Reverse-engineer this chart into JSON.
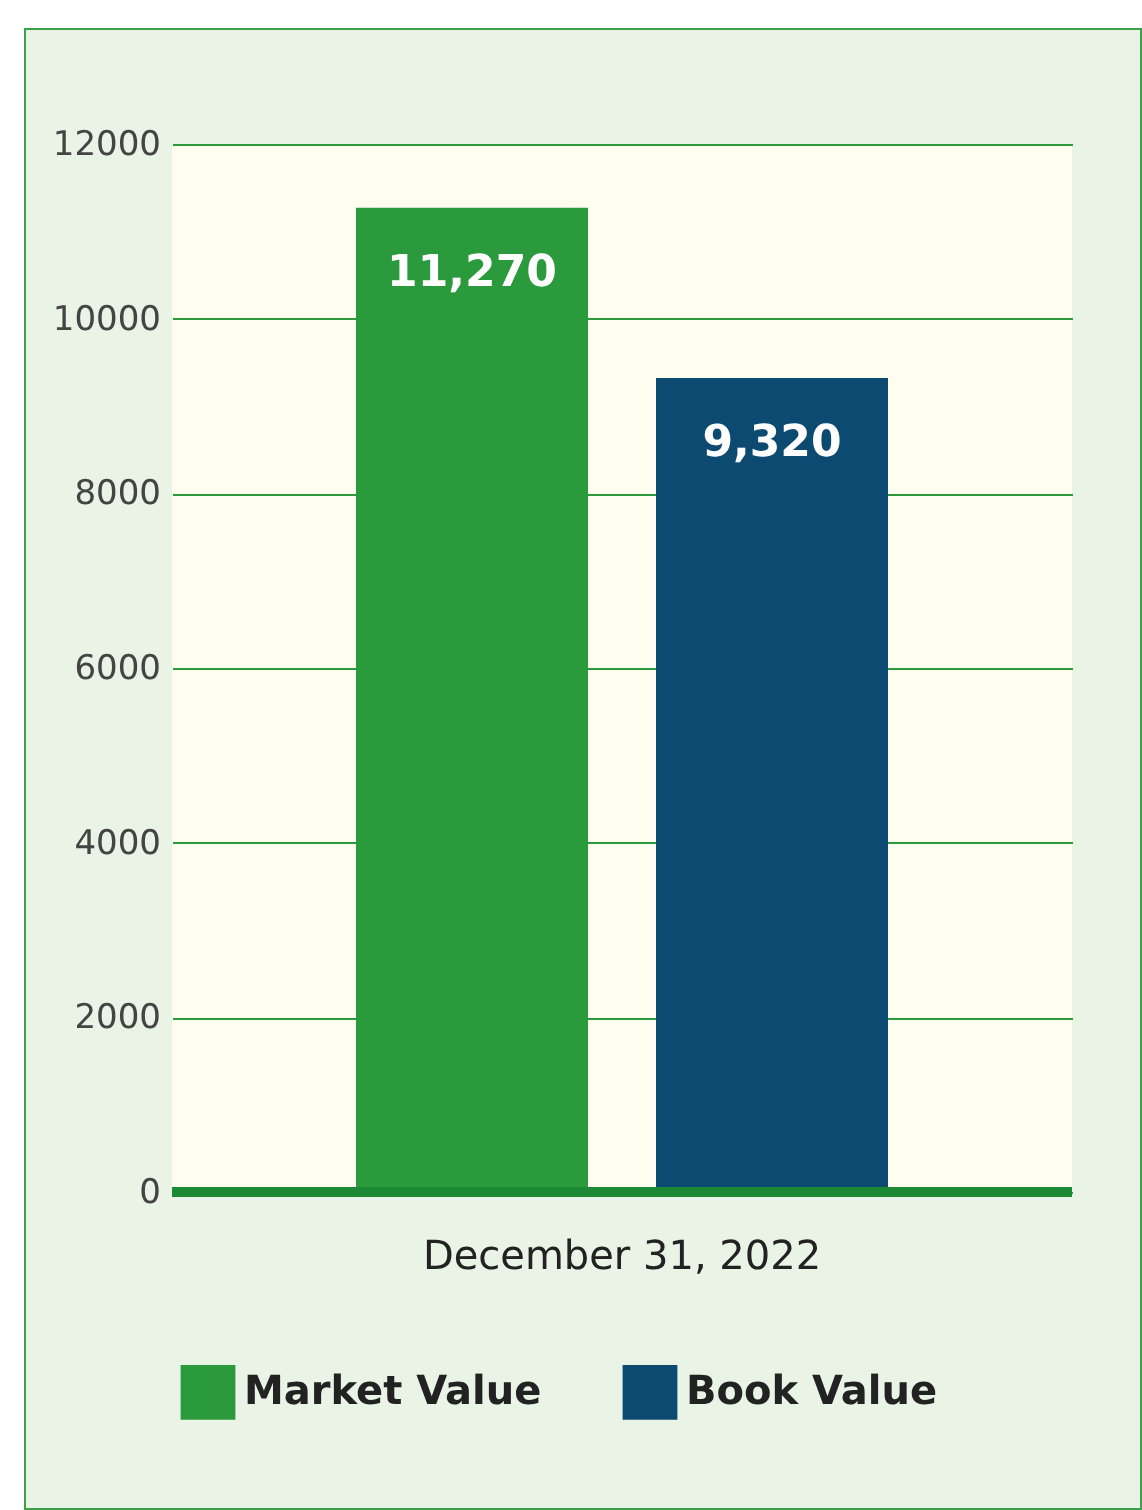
{
  "chart_data": {
    "type": "bar",
    "categories": [
      "December 31, 2022"
    ],
    "series": [
      {
        "name": "Market Value",
        "color": "#2a9a3c",
        "values": [
          11270
        ],
        "value_labels": [
          "11,270"
        ]
      },
      {
        "name": "Book Value",
        "color": "#0d4a72",
        "values": [
          9320
        ],
        "value_labels": [
          "9,320"
        ]
      }
    ],
    "ylim": [
      0,
      12000
    ],
    "yticks": [
      0,
      2000,
      4000,
      6000,
      8000,
      10000,
      12000
    ],
    "grid": "y",
    "legend": "bottom"
  }
}
